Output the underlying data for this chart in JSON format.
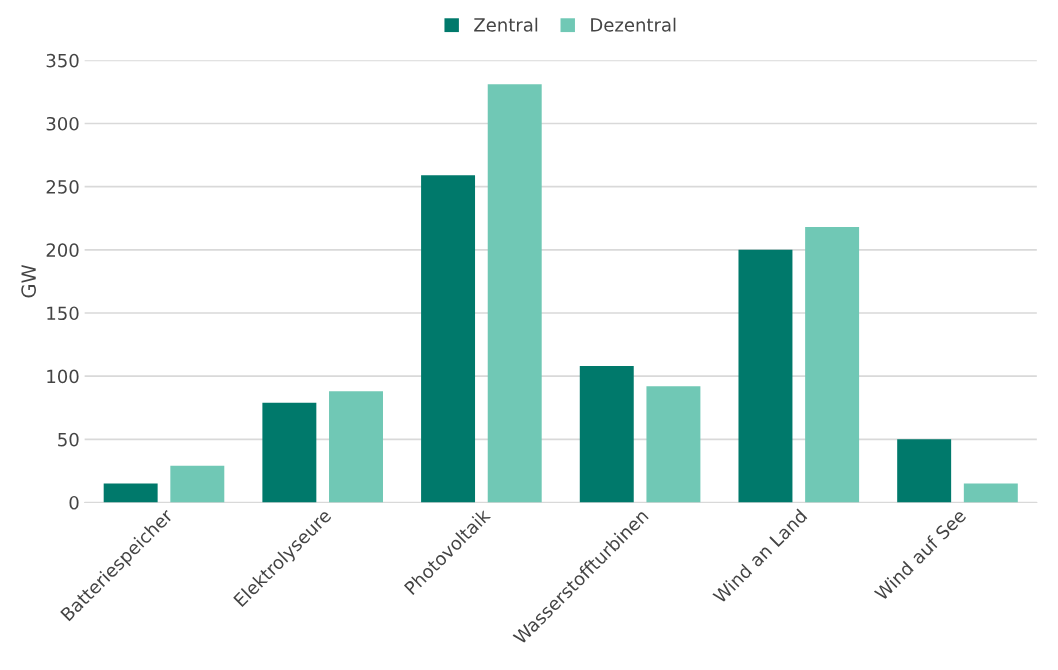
{
  "chart_data": {
    "type": "bar",
    "ylabel": "GW",
    "categories": [
      "Batteriespeicher",
      "Elektrolyseure",
      "Photovoltaik",
      "Wasserstoffturbinen",
      "Wind an Land",
      "Wind auf See"
    ],
    "series": [
      {
        "name": "Zentral",
        "color": "#00796b",
        "values": [
          15,
          79,
          259,
          108,
          200,
          50
        ]
      },
      {
        "name": "Dezentral",
        "color": "#70c8b5",
        "values": [
          29,
          88,
          331,
          92,
          218,
          15
        ]
      }
    ],
    "ylim": [
      0,
      350
    ],
    "yticks": [
      0,
      50,
      100,
      150,
      200,
      250,
      300,
      350
    ],
    "grid": "y",
    "legend": "top"
  }
}
